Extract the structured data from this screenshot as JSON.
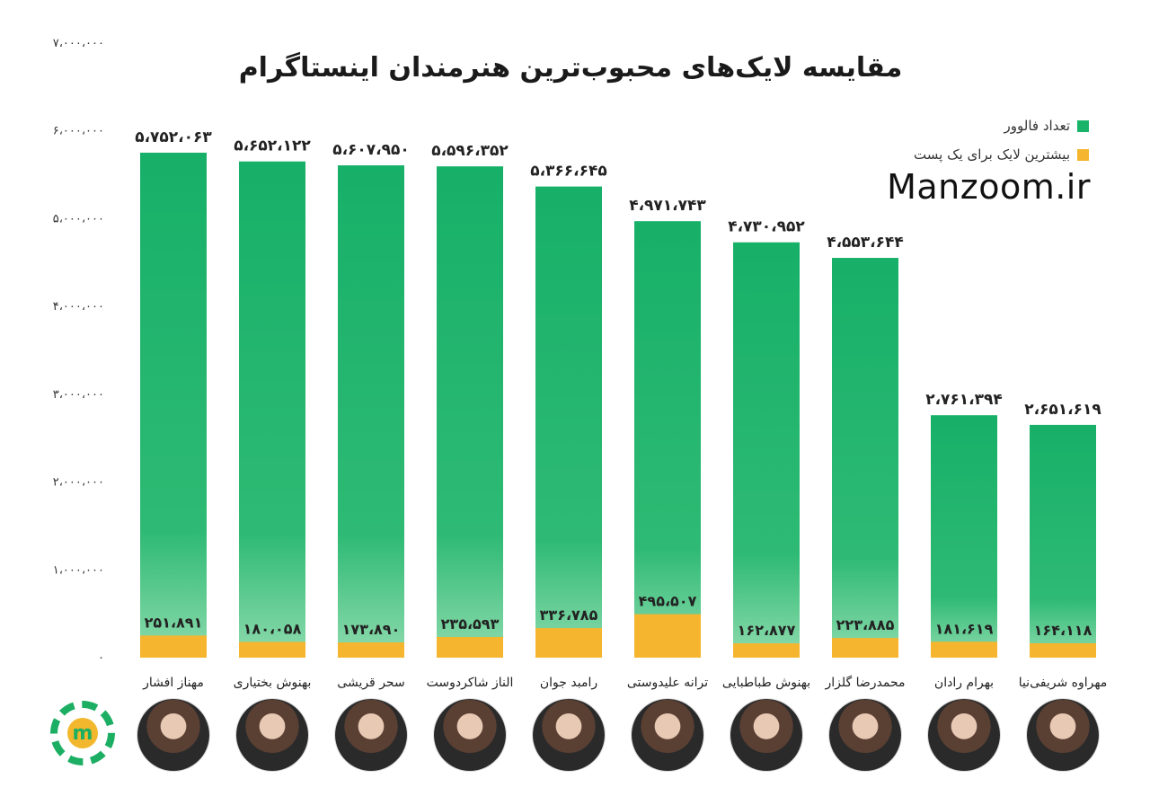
{
  "title": "مقایسه لایک‌های محبوب‌ترین هنرمندان اینستاگرام",
  "legend": {
    "followers": "تعداد فالوور",
    "max_likes": "بیشترین لایک برای یک پست"
  },
  "brand": "Manzoom.ir",
  "colors": {
    "followers": "#1ab36a",
    "followers_light": "#7fd6a4",
    "max_likes": "#f5b52e"
  },
  "chart_data": {
    "type": "bar",
    "ylim": [
      0,
      7000000
    ],
    "y_ticks": [
      "۰",
      "۱،۰۰۰،۰۰۰",
      "۲،۰۰۰،۰۰۰",
      "۳،۰۰۰،۰۰۰",
      "۴،۰۰۰،۰۰۰",
      "۵،۰۰۰،۰۰۰",
      "۶،۰۰۰،۰۰۰",
      "۷،۰۰۰،۰۰۰"
    ],
    "y_tick_values": [
      0,
      1000000,
      2000000,
      3000000,
      4000000,
      5000000,
      6000000,
      7000000
    ],
    "categories": [
      "مهناز افشار",
      "بهنوش بختیاری",
      "سحر قریشی",
      "الناز شاکردوست",
      "رامبد جوان",
      "ترانه علیدوستی",
      "بهنوش طباطبایی",
      "محمدرضا گلزار",
      "بهرام رادان",
      "مهراوه شریفی‌نیا"
    ],
    "series": [
      {
        "name": "تعداد فالوور",
        "values": [
          5752063,
          5652122,
          5607950,
          5596352,
          5366645,
          4971743,
          4730952,
          4553644,
          2761394,
          2651619
        ],
        "labels": [
          "۵،۷۵۲،۰۶۳",
          "۵،۶۵۲،۱۲۲",
          "۵،۶۰۷،۹۵۰",
          "۵،۵۹۶،۳۵۲",
          "۵،۳۶۶،۶۴۵",
          "۴،۹۷۱،۷۴۳",
          "۴،۷۳۰،۹۵۲",
          "۴،۵۵۳،۶۴۴",
          "۲،۷۶۱،۳۹۴",
          "۲،۶۵۱،۶۱۹"
        ]
      },
      {
        "name": "بیشترین لایک برای یک پست",
        "values": [
          251891,
          180058,
          173890,
          235593,
          336785,
          495507,
          162877,
          223885,
          181619,
          164118
        ],
        "labels": [
          "۲۵۱،۸۹۱",
          "۱۸۰،۰۵۸",
          "۱۷۳،۸۹۰",
          "۲۳۵،۵۹۳",
          "۳۳۶،۷۸۵",
          "۴۹۵،۵۰۷",
          "۱۶۲،۸۷۷",
          "۲۲۳،۸۸۵",
          "۱۸۱،۶۱۹",
          "۱۶۴،۱۱۸"
        ]
      }
    ]
  }
}
